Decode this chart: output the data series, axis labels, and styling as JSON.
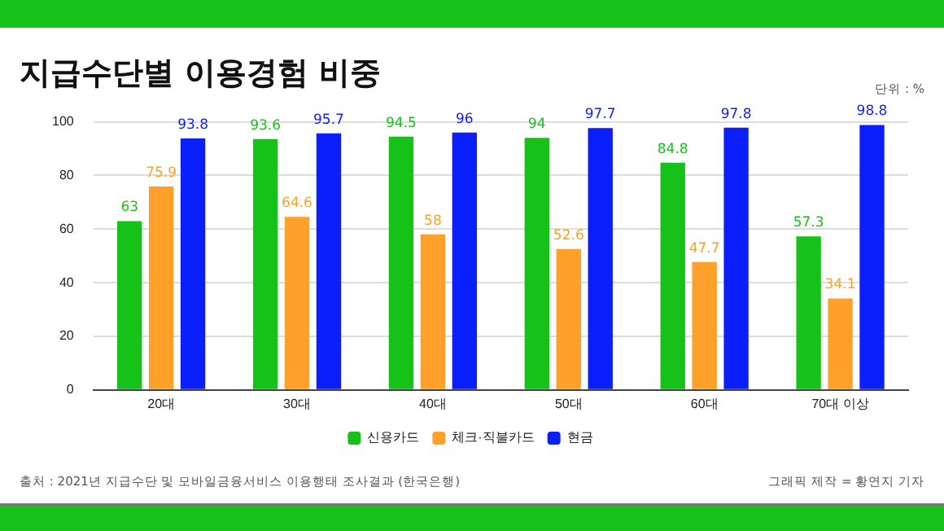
{
  "chart_data": {
    "type": "bar",
    "title": "지급수단별 이용경험 비중",
    "categories": [
      "20대",
      "30대",
      "40대",
      "50대",
      "60대",
      "70대 이상"
    ],
    "series": [
      {
        "name": "신용카드",
        "color": "#16c21a",
        "values": [
          63,
          93.6,
          94.5,
          94,
          84.8,
          57.3
        ]
      },
      {
        "name": "체크·직불카드",
        "color": "#ffa02a",
        "values": [
          75.9,
          64.6,
          58,
          52.6,
          47.7,
          34.1
        ]
      },
      {
        "name": "현금",
        "color": "#0a1ffb",
        "values": [
          93.8,
          95.7,
          96,
          97.7,
          97.8,
          98.8
        ]
      }
    ],
    "ylim": [
      0,
      100
    ],
    "yticks": [
      0,
      20,
      40,
      60,
      80,
      100
    ],
    "grid": "y",
    "legend": "bottom",
    "data_labels": true,
    "annotations": [
      "단위 : %",
      "출처 : 2021년 지급수단 및 모바일금융서비스 이용행태 조사결과 (한국은행)",
      "그래픽 제작 = 황연지 기자"
    ]
  }
}
